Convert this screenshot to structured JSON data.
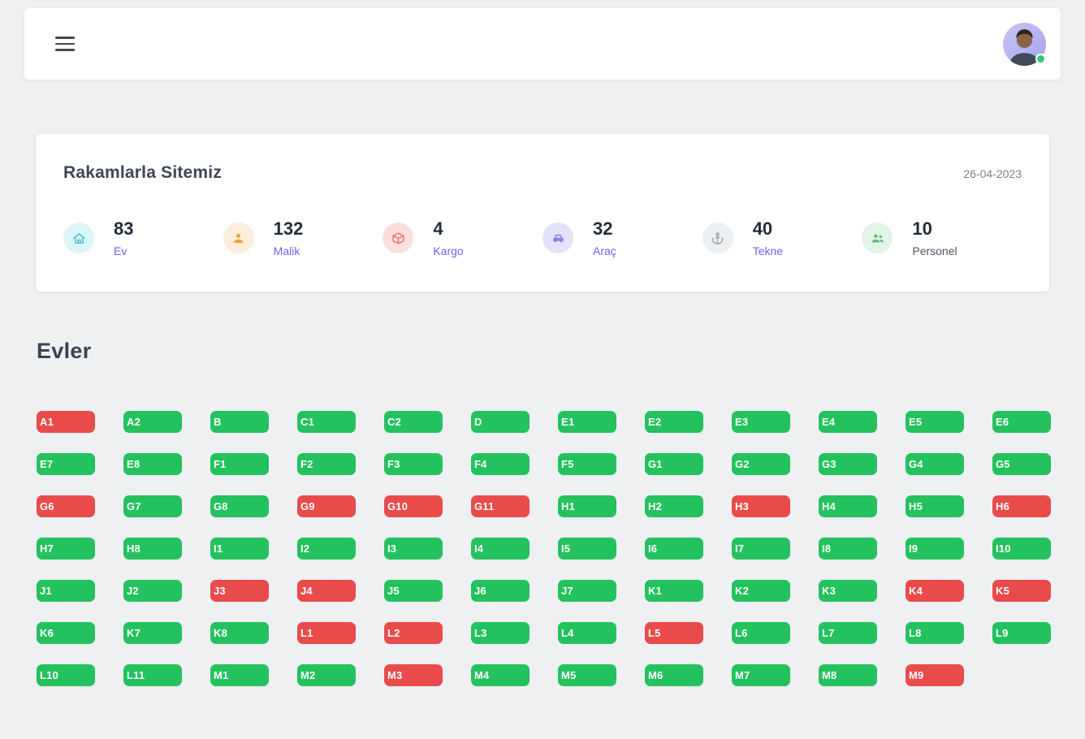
{
  "topbar": {
    "menu_icon": "hamburger-menu",
    "avatar": {
      "status": "online"
    }
  },
  "stats_card": {
    "title": "Rakamlarla Sitemiz",
    "date": "26-04-2023",
    "items": [
      {
        "value": "83",
        "label": "Ev",
        "icon": "home-icon",
        "icon_color": "#38c4d8",
        "icon_bg": "#dcf6f8",
        "label_color": "#6c63f5"
      },
      {
        "value": "132",
        "label": "Malik",
        "icon": "person-icon",
        "icon_color": "#f0a340",
        "icon_bg": "#fdeeda",
        "label_color": "#6c63f5"
      },
      {
        "value": "4",
        "label": "Kargo",
        "icon": "package-icon",
        "icon_color": "#ee6d6d",
        "icon_bg": "#fbdfdf",
        "label_color": "#6c63f5"
      },
      {
        "value": "32",
        "label": "Araç",
        "icon": "car-icon",
        "icon_color": "#8a84ec",
        "icon_bg": "#e4e2fa",
        "label_color": "#6c63f5"
      },
      {
        "value": "40",
        "label": "Tekne",
        "icon": "anchor-icon",
        "icon_color": "#99a4ad",
        "icon_bg": "#edf0f2",
        "label_color": "#6c63f5"
      },
      {
        "value": "10",
        "label": "Personel",
        "icon": "staff-icon",
        "icon_color": "#5bbf77",
        "icon_bg": "#e2f5e8",
        "label_color": "#4b5563"
      }
    ]
  },
  "houses": {
    "title": "Evler",
    "status_colors": {
      "available": "#24c25e",
      "occupied": "#e94b4b"
    },
    "items": [
      {
        "label": "A1",
        "status": "occupied"
      },
      {
        "label": "A2",
        "status": "available"
      },
      {
        "label": "B",
        "status": "available"
      },
      {
        "label": "C1",
        "status": "available"
      },
      {
        "label": "C2",
        "status": "available"
      },
      {
        "label": "D",
        "status": "available"
      },
      {
        "label": "E1",
        "status": "available"
      },
      {
        "label": "E2",
        "status": "available"
      },
      {
        "label": "E3",
        "status": "available"
      },
      {
        "label": "E4",
        "status": "available"
      },
      {
        "label": "E5",
        "status": "available"
      },
      {
        "label": "E6",
        "status": "available"
      },
      {
        "label": "E7",
        "status": "available"
      },
      {
        "label": "E8",
        "status": "available"
      },
      {
        "label": "F1",
        "status": "available"
      },
      {
        "label": "F2",
        "status": "available"
      },
      {
        "label": "F3",
        "status": "available"
      },
      {
        "label": "F4",
        "status": "available"
      },
      {
        "label": "F5",
        "status": "available"
      },
      {
        "label": "G1",
        "status": "available"
      },
      {
        "label": "G2",
        "status": "available"
      },
      {
        "label": "G3",
        "status": "available"
      },
      {
        "label": "G4",
        "status": "available"
      },
      {
        "label": "G5",
        "status": "available"
      },
      {
        "label": "G6",
        "status": "occupied"
      },
      {
        "label": "G7",
        "status": "available"
      },
      {
        "label": "G8",
        "status": "available"
      },
      {
        "label": "G9",
        "status": "occupied"
      },
      {
        "label": "G10",
        "status": "occupied"
      },
      {
        "label": "G11",
        "status": "occupied"
      },
      {
        "label": "H1",
        "status": "available"
      },
      {
        "label": "H2",
        "status": "available"
      },
      {
        "label": "H3",
        "status": "occupied"
      },
      {
        "label": "H4",
        "status": "available"
      },
      {
        "label": "H5",
        "status": "available"
      },
      {
        "label": "H6",
        "status": "occupied"
      },
      {
        "label": "H7",
        "status": "available"
      },
      {
        "label": "H8",
        "status": "available"
      },
      {
        "label": "I1",
        "status": "available"
      },
      {
        "label": "I2",
        "status": "available"
      },
      {
        "label": "I3",
        "status": "available"
      },
      {
        "label": "I4",
        "status": "available"
      },
      {
        "label": "I5",
        "status": "available"
      },
      {
        "label": "I6",
        "status": "available"
      },
      {
        "label": "I7",
        "status": "available"
      },
      {
        "label": "I8",
        "status": "available"
      },
      {
        "label": "I9",
        "status": "available"
      },
      {
        "label": "I10",
        "status": "available"
      },
      {
        "label": "J1",
        "status": "available"
      },
      {
        "label": "J2",
        "status": "available"
      },
      {
        "label": "J3",
        "status": "occupied"
      },
      {
        "label": "J4",
        "status": "occupied"
      },
      {
        "label": "J5",
        "status": "available"
      },
      {
        "label": "J6",
        "status": "available"
      },
      {
        "label": "J7",
        "status": "available"
      },
      {
        "label": "K1",
        "status": "available"
      },
      {
        "label": "K2",
        "status": "available"
      },
      {
        "label": "K3",
        "status": "available"
      },
      {
        "label": "K4",
        "status": "occupied"
      },
      {
        "label": "K5",
        "status": "occupied"
      },
      {
        "label": "K6",
        "status": "available"
      },
      {
        "label": "K7",
        "status": "available"
      },
      {
        "label": "K8",
        "status": "available"
      },
      {
        "label": "L1",
        "status": "occupied"
      },
      {
        "label": "L2",
        "status": "occupied"
      },
      {
        "label": "L3",
        "status": "available"
      },
      {
        "label": "L4",
        "status": "available"
      },
      {
        "label": "L5",
        "status": "occupied"
      },
      {
        "label": "L6",
        "status": "available"
      },
      {
        "label": "L7",
        "status": "available"
      },
      {
        "label": "L8",
        "status": "available"
      },
      {
        "label": "L9",
        "status": "available"
      },
      {
        "label": "L10",
        "status": "available"
      },
      {
        "label": "L11",
        "status": "available"
      },
      {
        "label": "M1",
        "status": "available"
      },
      {
        "label": "M2",
        "status": "available"
      },
      {
        "label": "M3",
        "status": "occupied"
      },
      {
        "label": "M4",
        "status": "available"
      },
      {
        "label": "M5",
        "status": "available"
      },
      {
        "label": "M6",
        "status": "available"
      },
      {
        "label": "M7",
        "status": "available"
      },
      {
        "label": "M8",
        "status": "available"
      },
      {
        "label": "M9",
        "status": "occupied"
      }
    ]
  }
}
